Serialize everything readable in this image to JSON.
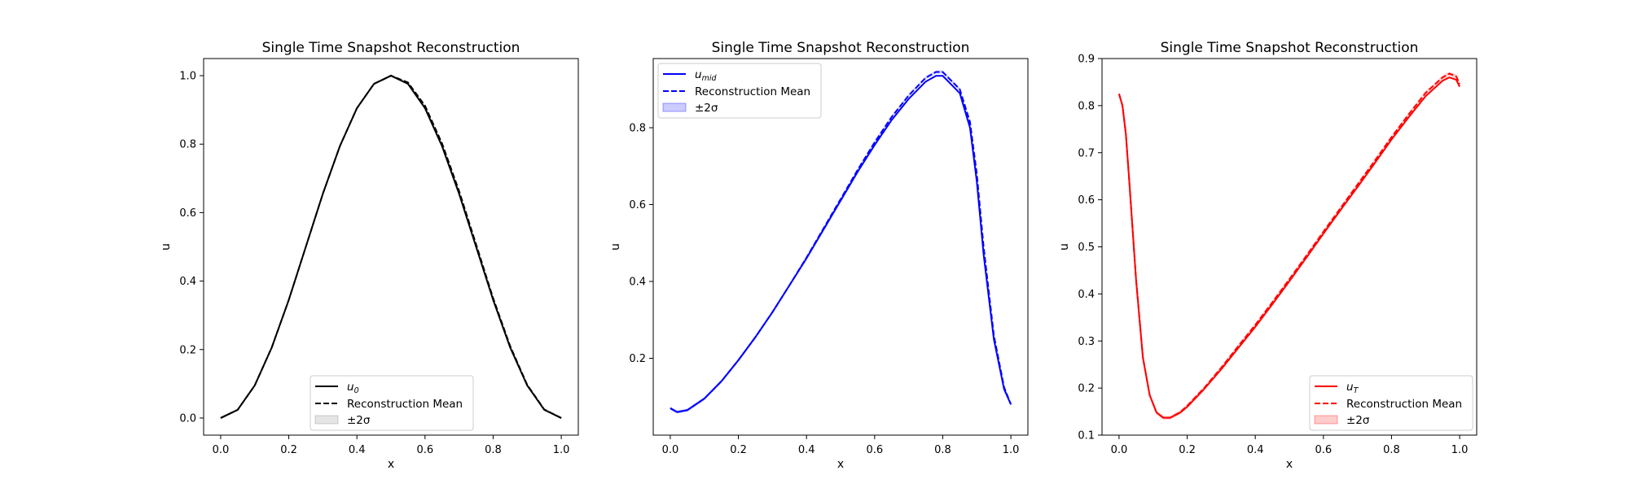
{
  "chart_data": [
    {
      "type": "line",
      "title": "Single Time Snapshot Reconstruction",
      "xlabel": "x",
      "ylabel": "u",
      "xlim": [
        -0.05,
        1.05
      ],
      "ylim": [
        -0.05,
        1.05
      ],
      "xticks": [
        "0.0",
        "0.2",
        "0.4",
        "0.6",
        "0.8",
        "1.0"
      ],
      "yticks": [
        "0.0",
        "0.2",
        "0.4",
        "0.6",
        "0.8",
        "1.0"
      ],
      "grid": false,
      "legend_position": "lower center",
      "color": "#000000",
      "band_color": "#7f7f7f",
      "legend": {
        "truth_main": "u",
        "truth_sub": "0",
        "mean": "Reconstruction Mean",
        "band": "±2σ"
      },
      "x": [
        0.0,
        0.05,
        0.1,
        0.15,
        0.2,
        0.25,
        0.3,
        0.35,
        0.4,
        0.45,
        0.5,
        0.55,
        0.6,
        0.65,
        0.7,
        0.75,
        0.8,
        0.85,
        0.9,
        0.95,
        1.0
      ],
      "series": [
        {
          "name": "u_0",
          "style": "solid",
          "values": [
            0.0,
            0.024,
            0.095,
            0.206,
            0.345,
            0.5,
            0.655,
            0.794,
            0.905,
            0.976,
            1.0,
            0.976,
            0.905,
            0.794,
            0.655,
            0.5,
            0.345,
            0.206,
            0.095,
            0.024,
            0.0
          ]
        },
        {
          "name": "Reconstruction Mean",
          "style": "dashed",
          "values": [
            0.0,
            0.024,
            0.095,
            0.206,
            0.345,
            0.5,
            0.655,
            0.794,
            0.905,
            0.976,
            1.0,
            0.98,
            0.912,
            0.802,
            0.663,
            0.507,
            0.35,
            0.21,
            0.097,
            0.025,
            0.0
          ]
        }
      ]
    },
    {
      "type": "line",
      "title": "Single Time Snapshot Reconstruction",
      "xlabel": "x",
      "ylabel": "u",
      "xlim": [
        -0.05,
        1.05
      ],
      "ylim": [
        0.0,
        0.98
      ],
      "xticks": [
        "0.0",
        "0.2",
        "0.4",
        "0.6",
        "0.8",
        "1.0"
      ],
      "yticks": [
        "0.2",
        "0.4",
        "0.6",
        "0.8"
      ],
      "grid": false,
      "legend_position": "upper left",
      "color": "#0000ff",
      "band_color": "#0000ff",
      "legend": {
        "truth_main": "u",
        "truth_sub": "mid",
        "mean": "Reconstruction Mean",
        "band": "±2σ"
      },
      "x": [
        0.0,
        0.02,
        0.05,
        0.1,
        0.15,
        0.2,
        0.25,
        0.3,
        0.35,
        0.4,
        0.45,
        0.5,
        0.55,
        0.6,
        0.65,
        0.7,
        0.75,
        0.78,
        0.8,
        0.85,
        0.88,
        0.9,
        0.92,
        0.95,
        0.98,
        1.0
      ],
      "series": [
        {
          "name": "u_mid",
          "style": "solid",
          "values": [
            0.07,
            0.06,
            0.065,
            0.095,
            0.14,
            0.195,
            0.255,
            0.32,
            0.39,
            0.46,
            0.535,
            0.61,
            0.685,
            0.755,
            0.82,
            0.875,
            0.92,
            0.935,
            0.935,
            0.89,
            0.8,
            0.66,
            0.47,
            0.25,
            0.12,
            0.08
          ]
        },
        {
          "name": "Reconstruction Mean",
          "style": "dashed",
          "values": [
            0.07,
            0.06,
            0.065,
            0.095,
            0.14,
            0.195,
            0.255,
            0.32,
            0.39,
            0.462,
            0.538,
            0.614,
            0.69,
            0.762,
            0.828,
            0.884,
            0.93,
            0.945,
            0.945,
            0.9,
            0.815,
            0.68,
            0.49,
            0.26,
            0.125,
            0.08
          ]
        }
      ]
    },
    {
      "type": "line",
      "title": "Single Time Snapshot Reconstruction",
      "xlabel": "x",
      "ylabel": "u",
      "xlim": [
        -0.05,
        1.05
      ],
      "ylim": [
        0.1,
        0.9
      ],
      "xticks": [
        "0.0",
        "0.2",
        "0.4",
        "0.6",
        "0.8",
        "1.0"
      ],
      "yticks": [
        "0.1",
        "0.2",
        "0.3",
        "0.4",
        "0.5",
        "0.6",
        "0.7",
        "0.8",
        "0.9"
      ],
      "grid": false,
      "legend_position": "lower right",
      "color": "#ff0000",
      "band_color": "#ff0000",
      "legend": {
        "truth_main": "u",
        "truth_sub": "T",
        "mean": "Reconstruction Mean",
        "band": "±2σ"
      },
      "x": [
        0.0,
        0.01,
        0.02,
        0.03,
        0.05,
        0.07,
        0.09,
        0.11,
        0.13,
        0.15,
        0.18,
        0.2,
        0.25,
        0.3,
        0.35,
        0.4,
        0.45,
        0.5,
        0.55,
        0.6,
        0.65,
        0.7,
        0.75,
        0.8,
        0.85,
        0.9,
        0.95,
        0.97,
        0.99,
        1.0
      ],
      "series": [
        {
          "name": "u_T",
          "style": "solid",
          "values": [
            0.825,
            0.8,
            0.74,
            0.64,
            0.43,
            0.265,
            0.185,
            0.148,
            0.137,
            0.137,
            0.148,
            0.16,
            0.198,
            0.24,
            0.285,
            0.33,
            0.378,
            0.427,
            0.477,
            0.528,
            0.578,
            0.627,
            0.677,
            0.728,
            0.775,
            0.82,
            0.853,
            0.86,
            0.855,
            0.84
          ]
        },
        {
          "name": "Reconstruction Mean",
          "style": "dashed",
          "values": [
            0.825,
            0.8,
            0.74,
            0.64,
            0.43,
            0.265,
            0.185,
            0.148,
            0.137,
            0.137,
            0.149,
            0.162,
            0.2,
            0.243,
            0.289,
            0.334,
            0.382,
            0.431,
            0.481,
            0.532,
            0.582,
            0.632,
            0.682,
            0.733,
            0.781,
            0.827,
            0.86,
            0.868,
            0.862,
            0.846
          ]
        }
      ]
    }
  ]
}
